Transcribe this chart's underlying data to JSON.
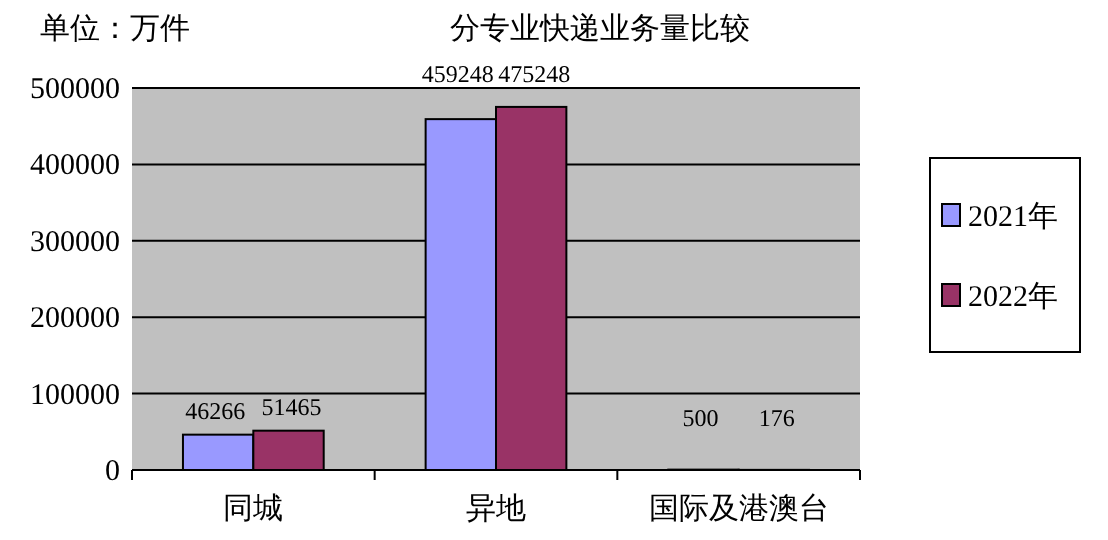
{
  "chart_data": {
    "type": "bar",
    "title": "分专业快递业务量比较",
    "annotations": [
      "单位：万件"
    ],
    "categories": [
      "同城",
      "异地",
      "国际及港澳台"
    ],
    "series": [
      {
        "name": "2021年",
        "color": "#9999ff",
        "values": [
          46266,
          459248,
          500
        ]
      },
      {
        "name": "2022年",
        "color": "#993366",
        "values": [
          51465,
          475248,
          176
        ]
      }
    ],
    "ylim": [
      0,
      500000
    ],
    "yticks": [
      0,
      100000,
      200000,
      300000,
      400000,
      500000
    ],
    "grid": "y",
    "legend": "right",
    "data_labels": true
  }
}
